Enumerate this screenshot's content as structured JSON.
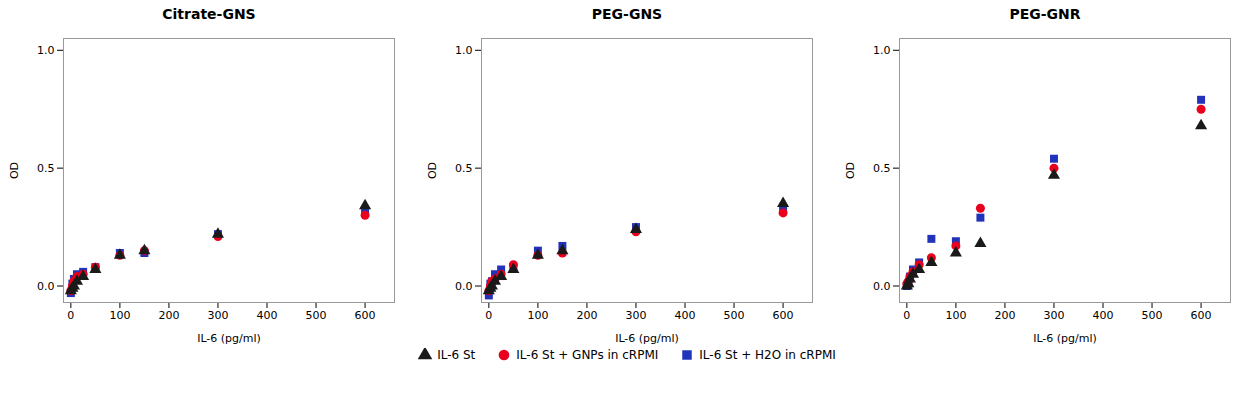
{
  "chart_data": [
    {
      "type": "scatter",
      "title": "Citrate-GNS",
      "xlabel": "IL-6 (pg/ml)",
      "ylabel": "OD",
      "xlim": [
        -15,
        660
      ],
      "ylim": [
        -0.07,
        1.05
      ],
      "xticks": [
        0,
        100,
        200,
        300,
        400,
        500,
        600
      ],
      "yticks": [
        {
          "value": 0.0,
          "label": "0.0"
        },
        0.5,
        {
          "value": 1.0,
          "label": "1.0"
        }
      ],
      "series": [
        {
          "name": "IL-6 St",
          "color": "#1a1a1a",
          "marker": "triangle",
          "x": [
            0,
            3.1,
            6.25,
            12.5,
            25,
            50,
            100,
            150,
            300,
            600
          ],
          "values": [
            -0.02,
            -0.01,
            0.0,
            0.02,
            0.04,
            0.07,
            0.13,
            0.15,
            0.22,
            0.34
          ]
        },
        {
          "name": "IL-6 St + GNPs in cRPMI",
          "color": "#e8001c",
          "marker": "circle",
          "x": [
            0,
            3.1,
            6.25,
            12.5,
            25,
            50,
            100,
            150,
            300,
            600
          ],
          "values": [
            -0.02,
            0.0,
            0.02,
            0.04,
            0.05,
            0.08,
            0.13,
            0.15,
            0.21,
            0.3
          ]
        },
        {
          "name": "IL-6 St + H2O in cRPMI",
          "color": "#2233bb",
          "marker": "square",
          "x": [
            0,
            3.1,
            6.25,
            12.5,
            25,
            50,
            100,
            150,
            300,
            600
          ],
          "values": [
            -0.03,
            0.01,
            0.03,
            0.05,
            0.06,
            0.08,
            0.14,
            0.14,
            0.22,
            0.31
          ]
        }
      ]
    },
    {
      "type": "scatter",
      "title": "PEG-GNS",
      "xlabel": "IL-6 (pg/ml)",
      "ylabel": "OD",
      "xlim": [
        -15,
        660
      ],
      "ylim": [
        -0.07,
        1.05
      ],
      "xticks": [
        0,
        100,
        200,
        300,
        400,
        500,
        600
      ],
      "yticks": [
        {
          "value": 0.0,
          "label": "0.0"
        },
        0.5,
        {
          "value": 1.0,
          "label": "1.0"
        }
      ],
      "series": [
        {
          "name": "IL-6 St",
          "color": "#1a1a1a",
          "marker": "triangle",
          "x": [
            0,
            3.1,
            6.25,
            12.5,
            25,
            50,
            100,
            150,
            300,
            600
          ],
          "values": [
            -0.02,
            -0.01,
            0.0,
            0.02,
            0.04,
            0.07,
            0.13,
            0.15,
            0.24,
            0.35
          ]
        },
        {
          "name": "IL-6 St + GNPs in cRPMI",
          "color": "#e8001c",
          "marker": "circle",
          "x": [
            0,
            3.1,
            6.25,
            12.5,
            25,
            50,
            100,
            150,
            300,
            600
          ],
          "values": [
            -0.02,
            0.0,
            0.02,
            0.03,
            0.05,
            0.09,
            0.13,
            0.14,
            0.23,
            0.31
          ]
        },
        {
          "name": "IL-6 St + H2O in cRPMI",
          "color": "#2233bb",
          "marker": "square",
          "x": [
            0,
            3.1,
            6.25,
            12.5,
            25,
            50,
            100,
            150,
            300,
            600
          ],
          "values": [
            -0.04,
            0.01,
            0.02,
            0.05,
            0.07,
            0.08,
            0.15,
            0.17,
            0.25,
            0.33
          ]
        }
      ]
    },
    {
      "type": "scatter",
      "title": "PEG-GNR",
      "xlabel": "IL-6 (pg/ml)",
      "ylabel": "OD",
      "xlim": [
        -15,
        660
      ],
      "ylim": [
        -0.07,
        1.05
      ],
      "xticks": [
        0,
        100,
        200,
        300,
        400,
        500,
        600
      ],
      "yticks": [
        {
          "value": 0.0,
          "label": "0.0"
        },
        0.5,
        {
          "value": 1.0,
          "label": "1.0"
        }
      ],
      "series": [
        {
          "name": "IL-6 St",
          "color": "#1a1a1a",
          "marker": "triangle",
          "x": [
            0,
            3.1,
            6.25,
            12.5,
            25,
            50,
            100,
            150,
            300,
            600
          ],
          "values": [
            0.0,
            0.01,
            0.03,
            0.05,
            0.07,
            0.1,
            0.14,
            0.18,
            0.47,
            0.68
          ]
        },
        {
          "name": "IL-6 St + GNPs in cRPMI",
          "color": "#e8001c",
          "marker": "circle",
          "x": [
            0,
            3.1,
            6.25,
            12.5,
            25,
            50,
            100,
            150,
            300,
            600
          ],
          "values": [
            0.01,
            0.02,
            0.04,
            0.06,
            0.09,
            0.12,
            0.17,
            0.33,
            0.5,
            0.75
          ]
        },
        {
          "name": "IL-6 St + H2O in cRPMI",
          "color": "#2233bb",
          "marker": "square",
          "x": [
            0,
            3.1,
            6.25,
            12.5,
            25,
            50,
            100,
            150,
            300,
            600
          ],
          "values": [
            0.0,
            0.01,
            0.04,
            0.07,
            0.1,
            0.2,
            0.19,
            0.29,
            0.54,
            0.79
          ]
        }
      ]
    }
  ]
}
